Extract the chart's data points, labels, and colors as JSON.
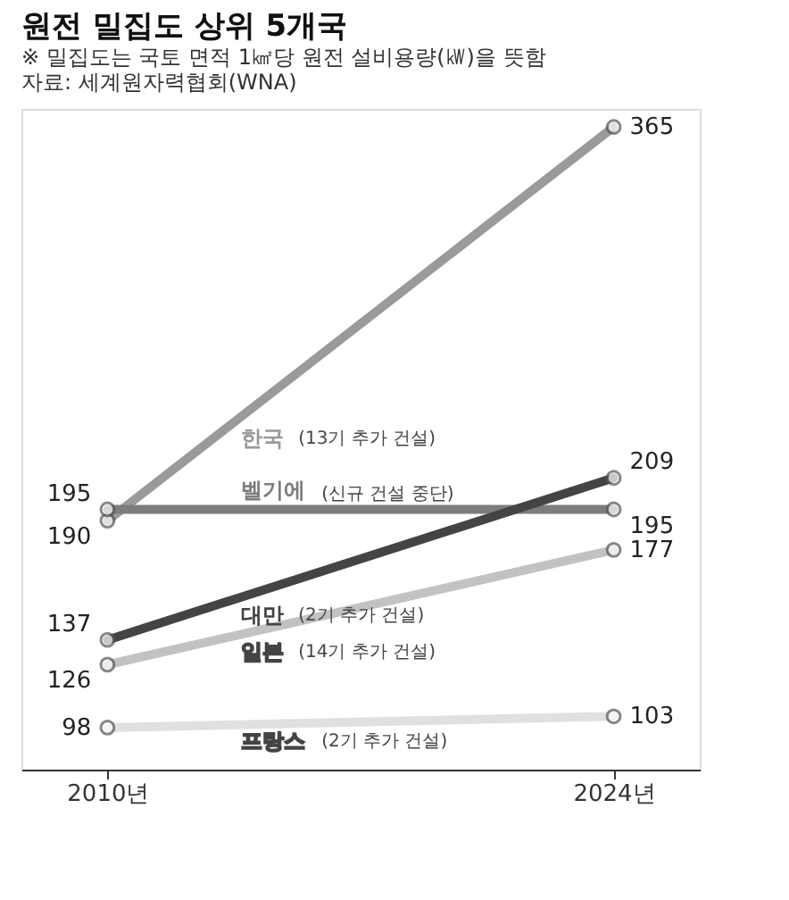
{
  "chart_data": {
    "type": "line",
    "title": "원전 밀집도 상위 5개국",
    "subtitle": "※ 밀집도는 국토 면적 1㎢당 원전 설비용량(㎾)을 뜻함",
    "annotations": [
      "자료: 세계원자력협회(WNA)",
      "(13기 추가 건설)",
      "(신규 건설 중단)",
      "(2기 추가 건설)",
      "(14기 추가 건설)",
      "(2기 추가 건설)"
    ],
    "categories": [
      "2010년",
      "2024년"
    ],
    "series": [
      {
        "name": "한국",
        "color": "#9a9a9a",
        "values": [
          190,
          365
        ]
      },
      {
        "name": "벨기에",
        "color": "#7d7d7d",
        "values": [
          195,
          195
        ]
      },
      {
        "name": "대만",
        "color": "#444444",
        "values": [
          137,
          209
        ]
      },
      {
        "name": "일본",
        "color": "#c2c2c2",
        "values": [
          126,
          177
        ]
      },
      {
        "name": "프랑스",
        "color": "#e0e0e0",
        "values": [
          98,
          103
        ]
      }
    ],
    "data_labels": true,
    "marker": "circle",
    "legend": false,
    "grid": false
  }
}
